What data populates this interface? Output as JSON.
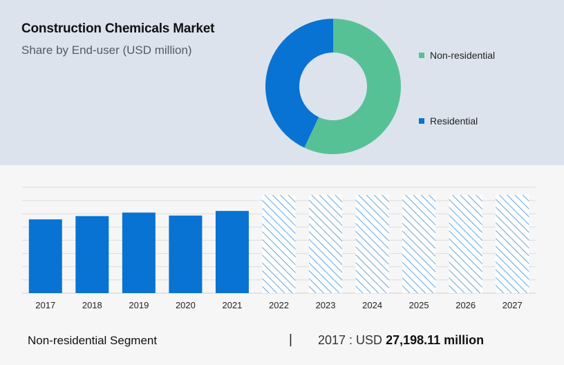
{
  "header": {
    "title": "Construction Chemicals Market",
    "subtitle": "Share by End-user (USD million)"
  },
  "legend": {
    "items": [
      {
        "label": "Non-residential",
        "color": "#57c196"
      },
      {
        "label": "Residential",
        "color": "#0873d2"
      }
    ]
  },
  "chart_data": [
    {
      "type": "pie",
      "subtype": "donut",
      "title": "",
      "slices": [
        {
          "name": "Non-residential",
          "value": 57,
          "color": "#57c196"
        },
        {
          "name": "Residential",
          "value": 43,
          "color": "#0873d2"
        }
      ],
      "legend_placement": "right"
    },
    {
      "type": "bar",
      "categories": [
        "2017",
        "2018",
        "2019",
        "2020",
        "2021",
        "2022",
        "2023",
        "2024",
        "2025",
        "2026",
        "2027"
      ],
      "values": [
        27198.11,
        28400,
        29700,
        28600,
        30300,
        null,
        null,
        null,
        null,
        null,
        null
      ],
      "forecast_categories": [
        "2022",
        "2023",
        "2024",
        "2025",
        "2026",
        "2027"
      ],
      "forecast_style": "hatched",
      "ylim": [
        0,
        39000
      ],
      "grid": true,
      "xlabel": "",
      "ylabel": "",
      "bar_color": "#0873d2"
    }
  ],
  "footer": {
    "segment_label": "Non-residential Segment",
    "separator": "|",
    "year_prefix": "2017 : USD ",
    "value_text": "27,198.11 million"
  }
}
